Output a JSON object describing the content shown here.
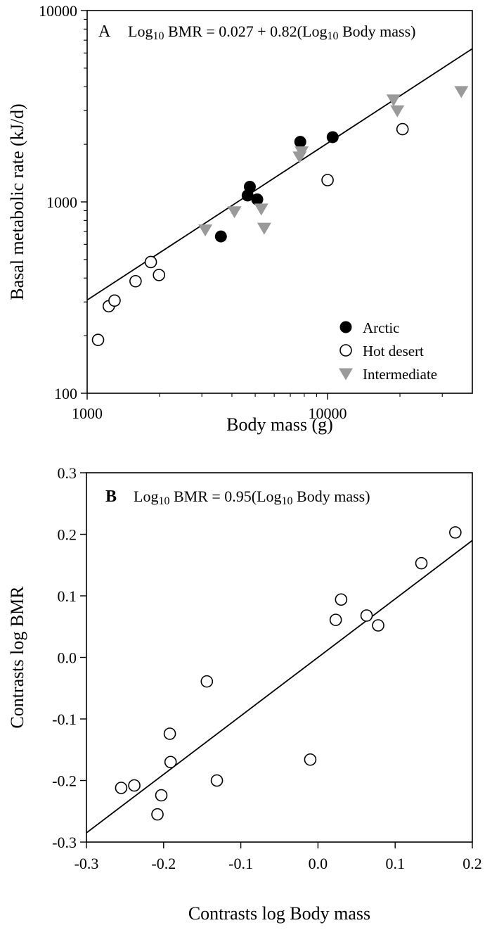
{
  "chart_data": [
    {
      "panel": "A",
      "type": "scatter",
      "equation": {
        "parts": [
          "Log",
          "10",
          " BMR = 0.027 + 0.82(Log",
          "10",
          " Body mass)"
        ]
      },
      "xlabel": "Body mass (g)",
      "ylabel": "Basal metabolic rate (kJ/d)",
      "x_scale": "log",
      "y_scale": "log",
      "xlim": [
        1000,
        40000
      ],
      "ylim": [
        100,
        10000
      ],
      "x_ticks": [
        1000,
        10000
      ],
      "y_ticks": [
        100,
        1000,
        10000
      ],
      "x_tick_labels": [
        "1000",
        "10000"
      ],
      "y_tick_labels": [
        "100",
        "1000",
        "10000"
      ],
      "grid": false,
      "legend_position": "bottom-right",
      "regression": {
        "intercept": 0.027,
        "slope": 0.82
      },
      "series": [
        {
          "name": "Arctic",
          "marker": "filled-circle",
          "color": "#000000",
          "points": [
            [
              3600,
              660
            ],
            [
              4650,
              1080
            ],
            [
              4750,
              1200
            ],
            [
              5100,
              1030
            ],
            [
              7700,
              2060
            ],
            [
              10500,
              2180
            ]
          ]
        },
        {
          "name": "Hot desert",
          "marker": "open-circle",
          "color": "#000000",
          "points": [
            [
              1110,
              190
            ],
            [
              1230,
              285
            ],
            [
              1300,
              305
            ],
            [
              1590,
              385
            ],
            [
              1840,
              485
            ],
            [
              1990,
              415
            ],
            [
              10000,
              1300
            ],
            [
              20500,
              2400
            ]
          ]
        },
        {
          "name": "Intermediate",
          "marker": "triangle-down",
          "color": "#9a9a9a",
          "points": [
            [
              3100,
              715
            ],
            [
              4100,
              890
            ],
            [
              5300,
              920
            ],
            [
              5450,
              730
            ],
            [
              7650,
              1720
            ],
            [
              7800,
              1830
            ],
            [
              18800,
              3420
            ],
            [
              19500,
              3000
            ],
            [
              36000,
              3780
            ]
          ]
        }
      ]
    },
    {
      "panel": "B",
      "type": "scatter",
      "equation": {
        "parts": [
          "Log",
          "10",
          " BMR = 0.95(Log",
          "10",
          " Body mass)"
        ]
      },
      "xlabel": "Contrasts log Body mass",
      "ylabel": "Contrasts log BMR",
      "xlim": [
        -0.3,
        0.2
      ],
      "ylim": [
        -0.3,
        0.3
      ],
      "x_ticks": [
        -0.3,
        -0.2,
        -0.1,
        0.0,
        0.1,
        0.2
      ],
      "y_ticks": [
        -0.3,
        -0.2,
        -0.1,
        0.0,
        0.1,
        0.2,
        0.3
      ],
      "x_tick_labels": [
        "-0.3",
        "-0.2",
        "-0.1",
        "0.0",
        "0.1",
        "0.2"
      ],
      "y_tick_labels": [
        "-0.3",
        "-0.2",
        "-0.1",
        "0.0",
        "0.1",
        "0.2",
        "0.3"
      ],
      "grid": false,
      "regression": {
        "intercept": 0.0,
        "slope": 0.95
      },
      "series": [
        {
          "marker": "open-circle",
          "color": "#000000",
          "points": [
            [
              -0.255,
              -0.212
            ],
            [
              -0.238,
              -0.208
            ],
            [
              -0.208,
              -0.255
            ],
            [
              -0.203,
              -0.224
            ],
            [
              -0.192,
              -0.124
            ],
            [
              -0.191,
              -0.17
            ],
            [
              -0.144,
              -0.039
            ],
            [
              -0.131,
              -0.2
            ],
            [
              -0.01,
              -0.166
            ],
            [
              0.023,
              0.061
            ],
            [
              0.03,
              0.094
            ],
            [
              0.063,
              0.068
            ],
            [
              0.078,
              0.052
            ],
            [
              0.134,
              0.153
            ],
            [
              0.178,
              0.203
            ]
          ]
        }
      ]
    }
  ]
}
